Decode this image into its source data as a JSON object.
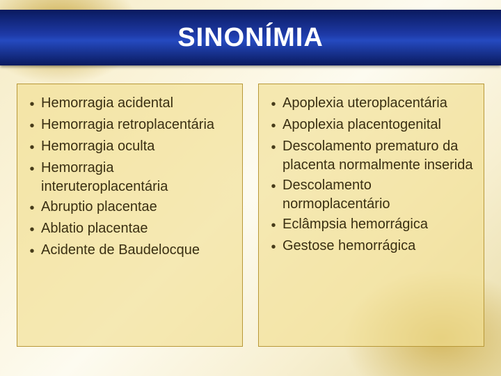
{
  "title": "SINONÍMIA",
  "title_bar": {
    "gradient_top": "#0a1a5e",
    "gradient_mid1": "#1e3aa8",
    "gradient_mid2": "#254ac0",
    "gradient_bottom": "#0a1a5e",
    "text_color": "#ffffff",
    "font_size_pt": 38
  },
  "background": {
    "base_colors": [
      "#f5ecc8",
      "#faf3d8",
      "#fdfbf0",
      "#f7efd0",
      "#e8dca8"
    ],
    "accent_colors": [
      "#c8a63e",
      "#d4b860"
    ]
  },
  "panel_style": {
    "background_color": "rgba(241,223,146,0.65)",
    "border_color": "#b89838",
    "text_color": "#3a2f12",
    "bullet_color": "#463b1a",
    "font_size_pt": 20
  },
  "left_panel": {
    "items": [
      "Hemorragia acidental",
      "Hemorragia retroplacentária",
      "Hemorragia oculta",
      "Hemorragia interuteroplacentária",
      "Abruptio placentae",
      "Ablatio placentae",
      "Acidente de Baudelocque"
    ]
  },
  "right_panel": {
    "items": [
      "Apoplexia uteroplacentária",
      "Apoplexia placentogenital",
      "Descolamento prematuro da placenta normalmente inserida",
      "Descolamento normoplacentário",
      "Eclâmpsia hemorrágica",
      "Gestose hemorrágica"
    ]
  },
  "bullet_char": "•"
}
